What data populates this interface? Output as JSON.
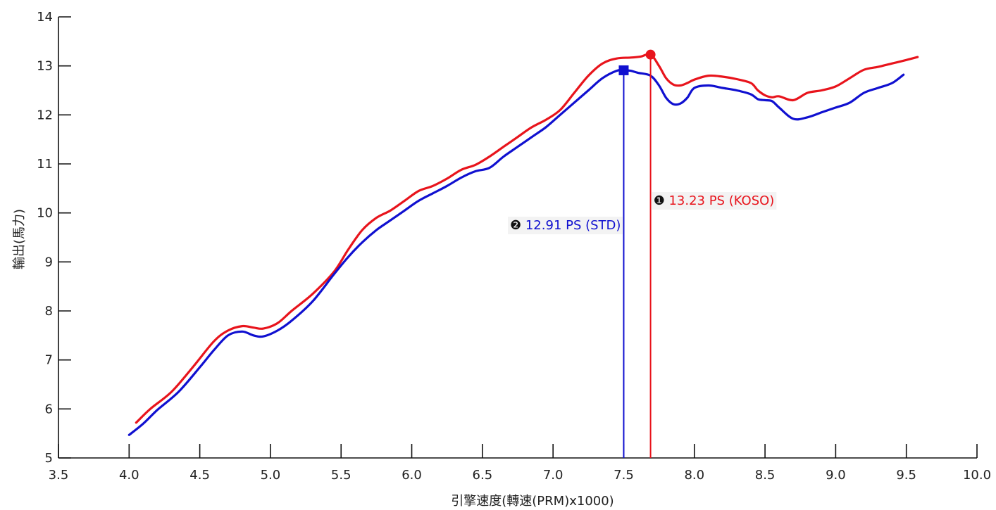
{
  "chart_data": {
    "type": "line",
    "title": "",
    "xlabel": "引擎速度(轉速(PRM)x1000)",
    "ylabel": "輸出(馬力)",
    "xlim": [
      3.5,
      10.0
    ],
    "ylim": [
      5,
      14
    ],
    "xticks": [
      "3.5",
      "4.0",
      "4.5",
      "5.0",
      "5.5",
      "6.0",
      "6.5",
      "7.0",
      "7.5",
      "8.0",
      "8.5",
      "9.0",
      "9.5",
      "10.0"
    ],
    "yticks": [
      "5",
      "6",
      "7",
      "8",
      "9",
      "10",
      "11",
      "12",
      "13",
      "14"
    ],
    "grid": false,
    "series": [
      {
        "name": "KOSO",
        "color": "#e8141c",
        "x": [
          4.05,
          4.15,
          4.3,
          4.45,
          4.6,
          4.7,
          4.8,
          4.88,
          4.95,
          5.05,
          5.15,
          5.3,
          5.45,
          5.55,
          5.65,
          5.75,
          5.85,
          5.95,
          6.05,
          6.15,
          6.25,
          6.35,
          6.45,
          6.55,
          6.65,
          6.75,
          6.85,
          6.95,
          7.05,
          7.15,
          7.25,
          7.35,
          7.45,
          7.55,
          7.62,
          7.69,
          7.75,
          7.8,
          7.85,
          7.9,
          7.95,
          8.0,
          8.1,
          8.2,
          8.3,
          8.4,
          8.45,
          8.5,
          8.55,
          8.6,
          8.7,
          8.8,
          8.9,
          9.0,
          9.1,
          9.2,
          9.3,
          9.4,
          9.5,
          9.58
        ],
        "y": [
          5.72,
          6.0,
          6.35,
          6.85,
          7.38,
          7.6,
          7.69,
          7.66,
          7.64,
          7.75,
          8.0,
          8.35,
          8.8,
          9.25,
          9.65,
          9.9,
          10.05,
          10.25,
          10.45,
          10.55,
          10.7,
          10.88,
          10.98,
          11.15,
          11.35,
          11.55,
          11.75,
          11.9,
          12.1,
          12.45,
          12.8,
          13.05,
          13.15,
          13.17,
          13.19,
          13.23,
          13.0,
          12.75,
          12.62,
          12.6,
          12.65,
          12.72,
          12.8,
          12.78,
          12.73,
          12.65,
          12.5,
          12.4,
          12.36,
          12.38,
          12.3,
          12.45,
          12.5,
          12.58,
          12.75,
          12.92,
          12.98,
          13.05,
          13.12,
          13.18
        ]
      },
      {
        "name": "STD",
        "color": "#1010d0",
        "x": [
          4.0,
          4.1,
          4.2,
          4.35,
          4.5,
          4.6,
          4.7,
          4.8,
          4.88,
          4.95,
          5.05,
          5.15,
          5.3,
          5.45,
          5.55,
          5.65,
          5.75,
          5.85,
          5.95,
          6.05,
          6.15,
          6.25,
          6.35,
          6.45,
          6.55,
          6.65,
          6.75,
          6.85,
          6.95,
          7.05,
          7.15,
          7.25,
          7.35,
          7.45,
          7.5,
          7.55,
          7.6,
          7.69,
          7.75,
          7.8,
          7.85,
          7.9,
          7.95,
          8.0,
          8.1,
          8.2,
          8.3,
          8.4,
          8.45,
          8.5,
          8.55,
          8.6,
          8.7,
          8.8,
          8.9,
          9.0,
          9.1,
          9.2,
          9.3,
          9.4,
          9.48
        ],
        "y": [
          5.47,
          5.7,
          5.98,
          6.35,
          6.85,
          7.2,
          7.5,
          7.58,
          7.5,
          7.48,
          7.6,
          7.8,
          8.2,
          8.75,
          9.1,
          9.4,
          9.65,
          9.85,
          10.05,
          10.25,
          10.4,
          10.55,
          10.72,
          10.85,
          10.92,
          11.15,
          11.35,
          11.55,
          11.75,
          12.0,
          12.25,
          12.5,
          12.75,
          12.9,
          12.91,
          12.9,
          12.86,
          12.8,
          12.6,
          12.35,
          12.22,
          12.23,
          12.35,
          12.55,
          12.6,
          12.55,
          12.5,
          12.42,
          12.32,
          12.3,
          12.28,
          12.15,
          11.92,
          11.95,
          12.05,
          12.15,
          12.25,
          12.45,
          12.55,
          12.65,
          12.82
        ]
      }
    ],
    "annotations": [
      {
        "label": "13.23 PS (KOSO)",
        "badge": "❶",
        "x": 7.69,
        "y": 13.23,
        "marker": "circle",
        "color": "#e8141c",
        "series": "KOSO"
      },
      {
        "label": "12.91 PS (STD)",
        "badge": "❷",
        "x": 7.5,
        "y": 12.91,
        "marker": "square",
        "color": "#1010d0",
        "series": "STD"
      }
    ]
  }
}
